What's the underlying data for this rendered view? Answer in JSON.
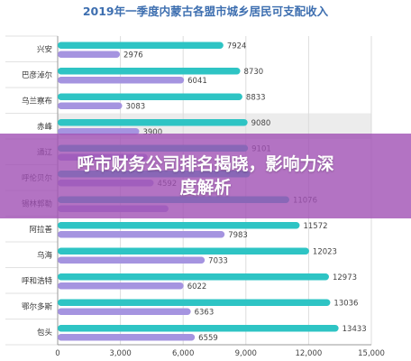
{
  "banner": {
    "headline": "呼市财务公司排名揭晓，影响力深度解析",
    "color": "#a050b4"
  },
  "chart_data": {
    "type": "bar",
    "orientation": "horizontal",
    "title": "2019年一季度内蒙古各盟市城乡居民可支配收入",
    "categories": [
      "兴安",
      "巴彦淖尔",
      "乌兰察布",
      "赤峰",
      "通辽",
      "呼伦贝尔",
      "锡林郭勒",
      "阿拉善",
      "乌海",
      "呼和浩特",
      "鄂尔多斯",
      "包头"
    ],
    "series": [
      {
        "color": "#2ec4c4",
        "values": [
          7924,
          8730,
          8833,
          9080,
          9101,
          9200,
          11076,
          11572,
          12023,
          12973,
          13036,
          13433
        ]
      },
      {
        "color": "#a594e0",
        "values": [
          2976,
          6041,
          3083,
          3900,
          4300,
          4592,
          5300,
          7983,
          7033,
          6022,
          6363,
          6559
        ]
      }
    ],
    "data_labels": [
      [
        "7924",
        "8730",
        "8833",
        "9080",
        "9101",
        "",
        "11076",
        "11572",
        "12023",
        "12973",
        "13036",
        "13433"
      ],
      [
        "2976",
        "6041",
        "3083",
        "3900",
        "",
        "4592",
        "",
        "7983",
        "7033",
        "6022",
        "6363",
        "6559"
      ]
    ],
    "highlight_category": "赤峰",
    "xlim": [
      0,
      15000
    ],
    "xticks": [
      "0",
      "3,000",
      "6,000",
      "9,000",
      "12,000",
      "15,000"
    ],
    "grid": true
  }
}
